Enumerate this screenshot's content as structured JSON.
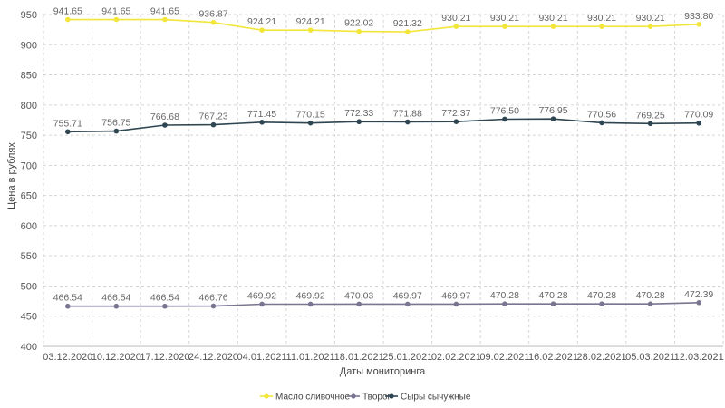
{
  "chart_data": {
    "type": "line",
    "xlabel": "Даты мониторинга",
    "ylabel": "Цена в рублях",
    "ylim": [
      400,
      950
    ],
    "yticks": [
      400,
      450,
      500,
      550,
      600,
      650,
      700,
      750,
      800,
      850,
      900,
      950
    ],
    "grid": true,
    "legend_position": "bottom-center",
    "categories": [
      "03.12.2020",
      "10.12.2020",
      "17.12.2020",
      "24.12.2020",
      "04.01.2021",
      "11.01.2021",
      "18.01.2021",
      "25.01.2021",
      "02.02.2021",
      "09.02.2021",
      "16.02.2021",
      "28.02.2021",
      "05.03.2021",
      "12.03.2021"
    ],
    "series": [
      {
        "name": "Масло сливочное",
        "color": "#f2e63a",
        "values": [
          941.65,
          941.65,
          941.65,
          936.87,
          924.21,
          924.21,
          922.02,
          921.32,
          930.21,
          930.21,
          930.21,
          930.21,
          930.21,
          933.8
        ],
        "labels": [
          "941.65",
          "941.65",
          "941.65",
          "936.87",
          "924.21",
          "924.21",
          "922.02",
          "921.32",
          "930.21",
          "930.21",
          "930.21",
          "930.21",
          "930.21",
          "933.80"
        ]
      },
      {
        "name": "Творог",
        "color": "#7a7590",
        "values": [
          466.54,
          466.54,
          466.54,
          466.76,
          469.92,
          469.92,
          470.03,
          469.97,
          469.97,
          470.28,
          470.28,
          470.28,
          470.28,
          472.39
        ],
        "labels": [
          "466.54",
          "466.54",
          "466.54",
          "466.76",
          "469.92",
          "469.92",
          "470.03",
          "469.97",
          "469.97",
          "470.28",
          "470.28",
          "470.28",
          "470.28",
          "472.39"
        ]
      },
      {
        "name": "Сыры сычужные",
        "color": "#2e4552",
        "values": [
          755.71,
          756.75,
          766.68,
          767.23,
          771.45,
          770.15,
          772.33,
          771.88,
          772.37,
          776.5,
          776.95,
          770.56,
          769.25,
          770.09
        ],
        "labels": [
          "755.71",
          "756.75",
          "766.68",
          "767.23",
          "771.45",
          "770.15",
          "772.33",
          "771.88",
          "772.37",
          "776.50",
          "776.95",
          "770.56",
          "769.25",
          "770.09"
        ]
      }
    ]
  }
}
